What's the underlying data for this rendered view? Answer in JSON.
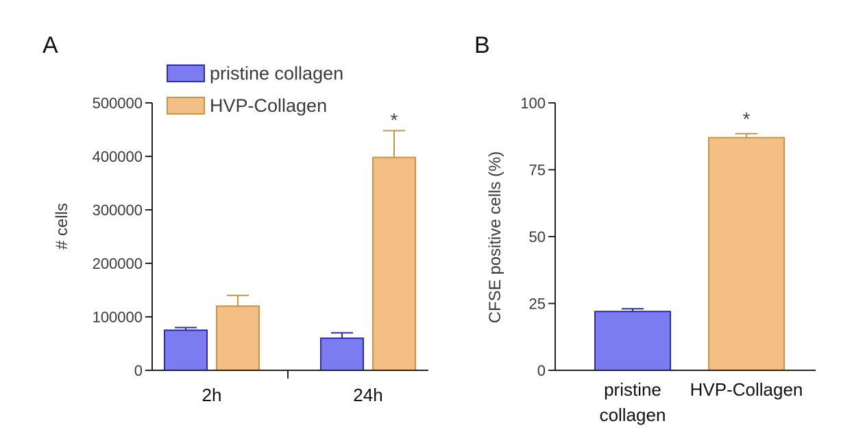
{
  "colors": {
    "pristine_fill": "#7b7cf0",
    "pristine_stroke": "#2a2ab8",
    "hvp_fill": "#f4bf84",
    "hvp_stroke": "#c99445",
    "axis": "#222222"
  },
  "chart_data": [
    {
      "panel": "A",
      "type": "bar",
      "categories": [
        "2h",
        "24h"
      ],
      "series": [
        {
          "name": "pristine collagen",
          "values": [
            75000,
            60000
          ],
          "errors": [
            5000,
            10000
          ]
        },
        {
          "name": "HVP-Collagen",
          "values": [
            120000,
            398000
          ],
          "errors": [
            20000,
            50000
          ]
        }
      ],
      "ylabel": "# cells",
      "ylim": [
        0,
        500000
      ],
      "yticks": [
        0,
        100000,
        200000,
        300000,
        400000,
        500000
      ],
      "ytick_labels": [
        "0",
        "100000",
        "200000",
        "300000",
        "400000",
        "500000"
      ],
      "annotations": [
        "*"
      ],
      "legend": "top-left",
      "grid": false
    },
    {
      "panel": "B",
      "type": "bar",
      "categories": [
        "pristine collagen",
        "HVP-Collagen"
      ],
      "category_lines": [
        [
          "pristine",
          "collagen"
        ],
        [
          "HVP-Collagen"
        ]
      ],
      "values": [
        22,
        87
      ],
      "errors": [
        1,
        1.5
      ],
      "ylabel": "CFSE positive cells (%)",
      "ylim": [
        0,
        100
      ],
      "yticks": [
        0,
        25,
        50,
        75,
        100
      ],
      "ytick_labels": [
        "0",
        "25",
        "50",
        "75",
        "100"
      ],
      "annotations": [
        "*"
      ],
      "grid": false
    }
  ]
}
